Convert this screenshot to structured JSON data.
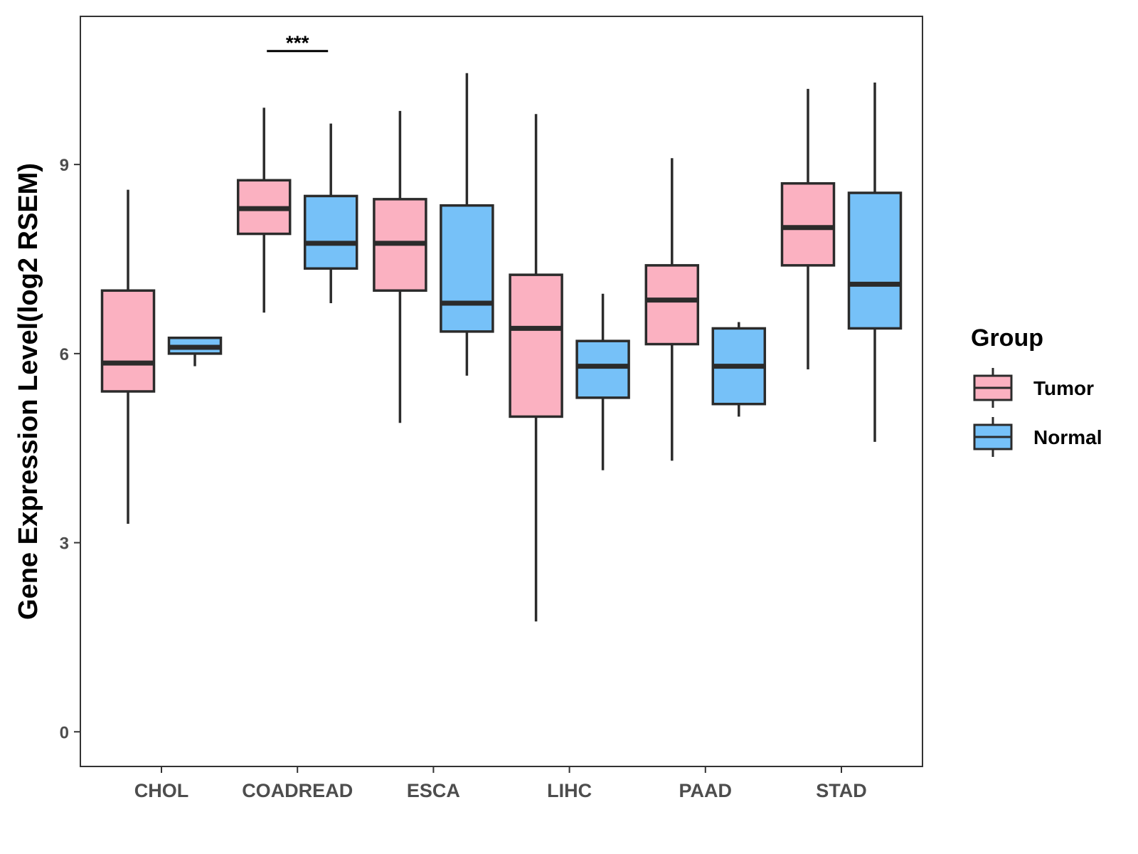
{
  "chart_data": {
    "type": "boxplot",
    "title": "",
    "xlabel": "",
    "ylabel": "Gene Expression Level(log2 RSEM)",
    "ylim": [
      -0.55,
      11.35
    ],
    "yticks": [
      0,
      3,
      6,
      9
    ],
    "grid": false,
    "categories": [
      "CHOL",
      "COADREAD",
      "ESCA",
      "LIHC",
      "PAAD",
      "STAD"
    ],
    "legend": {
      "title": "Group",
      "position": "right",
      "entries": [
        {
          "name": "Tumor",
          "color": "#FBB1C1"
        },
        {
          "name": "Normal",
          "color": "#76C1F8"
        }
      ]
    },
    "series": [
      {
        "name": "Tumor",
        "color": "#FBB1C1",
        "boxes": [
          {
            "min": 3.3,
            "q1": 5.4,
            "median": 5.85,
            "q3": 7.0,
            "max": 8.6
          },
          {
            "min": 6.65,
            "q1": 7.9,
            "median": 8.3,
            "q3": 8.75,
            "max": 9.9
          },
          {
            "min": 4.9,
            "q1": 7.0,
            "median": 7.75,
            "q3": 8.45,
            "max": 9.85
          },
          {
            "min": 1.75,
            "q1": 5.0,
            "median": 6.4,
            "q3": 7.25,
            "max": 9.8
          },
          {
            "min": 4.3,
            "q1": 6.15,
            "median": 6.85,
            "q3": 7.4,
            "max": 9.1
          },
          {
            "min": 5.75,
            "q1": 7.4,
            "median": 8.0,
            "q3": 8.7,
            "max": 10.2
          }
        ]
      },
      {
        "name": "Normal",
        "color": "#76C1F8",
        "boxes": [
          {
            "min": 5.8,
            "q1": 6.0,
            "median": 6.1,
            "q3": 6.25,
            "max": 6.25
          },
          {
            "min": 6.8,
            "q1": 7.35,
            "median": 7.75,
            "q3": 8.5,
            "max": 9.65
          },
          {
            "min": 5.65,
            "q1": 6.35,
            "median": 6.8,
            "q3": 8.35,
            "max": 10.45
          },
          {
            "min": 4.15,
            "q1": 5.3,
            "median": 5.8,
            "q3": 6.2,
            "max": 6.95
          },
          {
            "min": 5.0,
            "q1": 5.2,
            "median": 5.8,
            "q3": 6.4,
            "max": 6.5
          },
          {
            "min": 4.6,
            "q1": 6.4,
            "median": 7.1,
            "q3": 8.55,
            "max": 10.3
          }
        ]
      }
    ],
    "annotations": [
      {
        "category": "COADREAD",
        "text": "***",
        "y": 10.8
      }
    ]
  }
}
